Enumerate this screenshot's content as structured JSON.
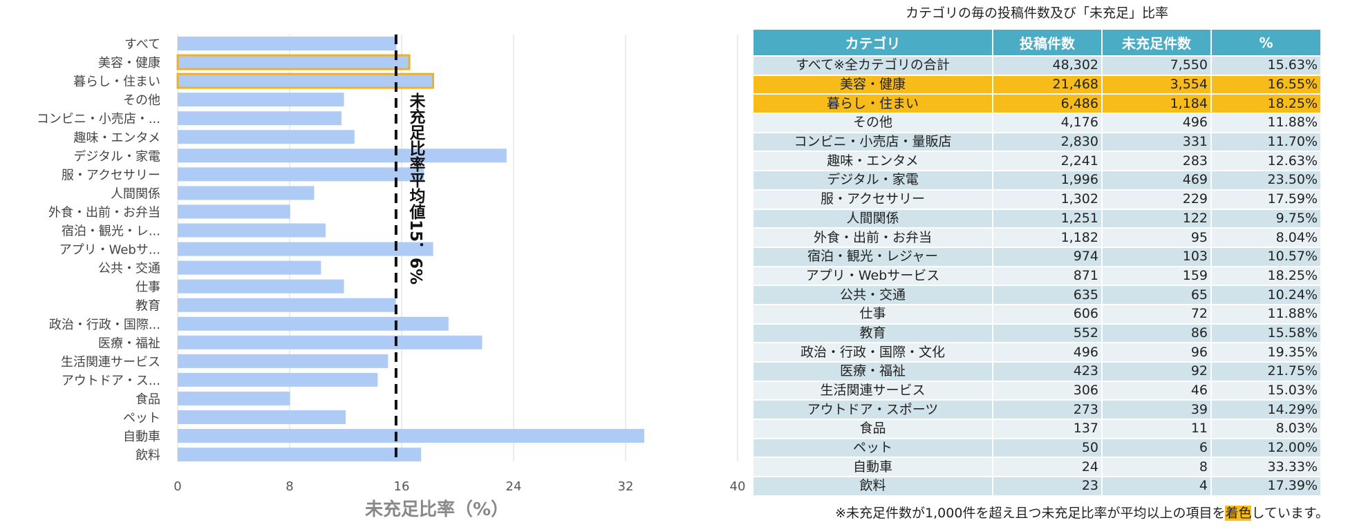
{
  "chart_data": {
    "type": "bar",
    "orientation": "horizontal",
    "categories": [
      "すべて",
      "美容・健康",
      "暮らし・住まい",
      "その他",
      "コンビニ・小売店・...",
      "趣味・エンタメ",
      "デジタル・家電",
      "服・アクセサリー",
      "人間関係",
      "外食・出前・お弁当",
      "宿泊・観光・レ...",
      "アプリ・Webサ...",
      "公共・交通",
      "仕事",
      "教育",
      "政治・行政・国際...",
      "医療・福祉",
      "生活関連サービス",
      "アウトドア・ス...",
      "食品",
      "ペット",
      "自動車",
      "飲料"
    ],
    "values": [
      15.63,
      16.55,
      18.25,
      11.88,
      11.7,
      12.63,
      23.5,
      17.59,
      9.75,
      8.04,
      10.57,
      18.25,
      10.24,
      11.88,
      15.58,
      19.35,
      21.75,
      15.03,
      14.29,
      8.03,
      12.0,
      33.33,
      17.39
    ],
    "highlighted": [
      "美容・健康",
      "暮らし・住まい"
    ],
    "xlabel": "未充足比率（%）",
    "xlim": [
      0,
      40
    ],
    "xticks": [
      "0",
      "8",
      "16",
      "24",
      "32",
      "40"
    ],
    "reference_line": {
      "value": 15.6,
      "label": "未充足比率平均値15．6%"
    },
    "colors": {
      "bar": "#aecbf5",
      "highlight_border": "#f2b21b",
      "grid": "#e0e0e0",
      "ref_line": "#111111",
      "axis_label": "#888888"
    }
  },
  "table": {
    "title": "カテゴリの毎の投稿件数及び「未充足」比率",
    "headers": [
      "カテゴリ",
      "投稿件数",
      "未充足件数",
      "%"
    ],
    "rows": [
      {
        "category": "すべて※全カテゴリの合計",
        "posts": "48,302",
        "unmet": "7,550",
        "pct": "15.63%",
        "highlight": false
      },
      {
        "category": "美容・健康",
        "posts": "21,468",
        "unmet": "3,554",
        "pct": "16.55%",
        "highlight": true
      },
      {
        "category": "暮らし・住まい",
        "posts": "6,486",
        "unmet": "1,184",
        "pct": "18.25%",
        "highlight": true
      },
      {
        "category": "その他",
        "posts": "4,176",
        "unmet": "496",
        "pct": "11.88%",
        "highlight": false
      },
      {
        "category": "コンビニ・小売店・量販店",
        "posts": "2,830",
        "unmet": "331",
        "pct": "11.70%",
        "highlight": false
      },
      {
        "category": "趣味・エンタメ",
        "posts": "2,241",
        "unmet": "283",
        "pct": "12.63%",
        "highlight": false
      },
      {
        "category": "デジタル・家電",
        "posts": "1,996",
        "unmet": "469",
        "pct": "23.50%",
        "highlight": false
      },
      {
        "category": "服・アクセサリー",
        "posts": "1,302",
        "unmet": "229",
        "pct": "17.59%",
        "highlight": false
      },
      {
        "category": "人間関係",
        "posts": "1,251",
        "unmet": "122",
        "pct": "9.75%",
        "highlight": false
      },
      {
        "category": "外食・出前・お弁当",
        "posts": "1,182",
        "unmet": "95",
        "pct": "8.04%",
        "highlight": false
      },
      {
        "category": "宿泊・観光・レジャー",
        "posts": "974",
        "unmet": "103",
        "pct": "10.57%",
        "highlight": false
      },
      {
        "category": "アプリ・Webサービス",
        "posts": "871",
        "unmet": "159",
        "pct": "18.25%",
        "highlight": false
      },
      {
        "category": "公共・交通",
        "posts": "635",
        "unmet": "65",
        "pct": "10.24%",
        "highlight": false
      },
      {
        "category": "仕事",
        "posts": "606",
        "unmet": "72",
        "pct": "11.88%",
        "highlight": false
      },
      {
        "category": "教育",
        "posts": "552",
        "unmet": "86",
        "pct": "15.58%",
        "highlight": false
      },
      {
        "category": "政治・行政・国際・文化",
        "posts": "496",
        "unmet": "96",
        "pct": "19.35%",
        "highlight": false
      },
      {
        "category": "医療・福祉",
        "posts": "423",
        "unmet": "92",
        "pct": "21.75%",
        "highlight": false
      },
      {
        "category": "生活関連サービス",
        "posts": "306",
        "unmet": "46",
        "pct": "15.03%",
        "highlight": false
      },
      {
        "category": "アウトドア・スポーツ",
        "posts": "273",
        "unmet": "39",
        "pct": "14.29%",
        "highlight": false
      },
      {
        "category": "食品",
        "posts": "137",
        "unmet": "11",
        "pct": "8.03%",
        "highlight": false
      },
      {
        "category": "ペット",
        "posts": "50",
        "unmet": "6",
        "pct": "12.00%",
        "highlight": false
      },
      {
        "category": "自動車",
        "posts": "24",
        "unmet": "8",
        "pct": "33.33%",
        "highlight": false
      },
      {
        "category": "飲料",
        "posts": "23",
        "unmet": "4",
        "pct": "17.39%",
        "highlight": false
      }
    ],
    "colors": {
      "header": "#4bacc6",
      "row_odd": "#d0e3ea",
      "row_even": "#e9f1f4",
      "highlight": "#f7bb1a"
    }
  },
  "footnote": {
    "before": "※未充足件数が1,000件を超え且つ未充足比率が平均以上の項目を",
    "marked": "着色",
    "after": "しています。"
  }
}
